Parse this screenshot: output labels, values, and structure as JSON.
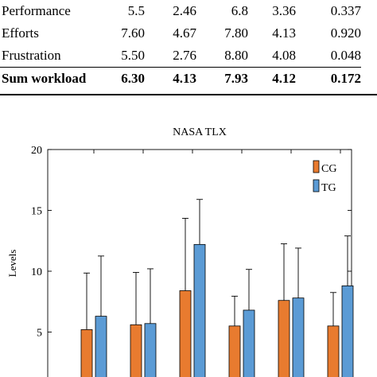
{
  "table": {
    "rows": [
      {
        "label": "Performance",
        "values": [
          "5.5",
          "2.46",
          "6.8",
          "3.36",
          "0.337"
        ],
        "bold": false
      },
      {
        "label": "Efforts",
        "values": [
          "7.60",
          "4.67",
          "7.80",
          "4.13",
          "0.920"
        ],
        "bold": false
      },
      {
        "label": "Frustration",
        "values": [
          "5.50",
          "2.76",
          "8.80",
          "4.08",
          "0.048"
        ],
        "bold": false
      },
      {
        "label": "Sum workload",
        "values": [
          "6.30",
          "4.13",
          "7.93",
          "4.12",
          "0.172"
        ],
        "bold": true
      }
    ]
  },
  "chart_data": {
    "type": "bar",
    "title": "NASA TLX",
    "ylabel": "Levels",
    "xlabel": "",
    "ylim": [
      0,
      20
    ],
    "yticks": [
      "5",
      "10",
      "15",
      "20"
    ],
    "categories": [
      "",
      "",
      "",
      "",
      "",
      ""
    ],
    "series": [
      {
        "name": "CG",
        "color": "#e87b2f",
        "values": [
          5.2,
          5.6,
          8.4,
          5.5,
          7.6,
          5.5
        ],
        "errors": [
          4.65,
          4.3,
          5.95,
          2.45,
          4.65,
          2.75
        ]
      },
      {
        "name": "TG",
        "color": "#5b9bd5",
        "values": [
          6.3,
          5.7,
          12.2,
          6.8,
          7.8,
          8.8
        ],
        "errors": [
          4.95,
          4.5,
          3.7,
          3.35,
          4.1,
          4.1
        ]
      }
    ],
    "grid": false,
    "legend": "top-right"
  }
}
